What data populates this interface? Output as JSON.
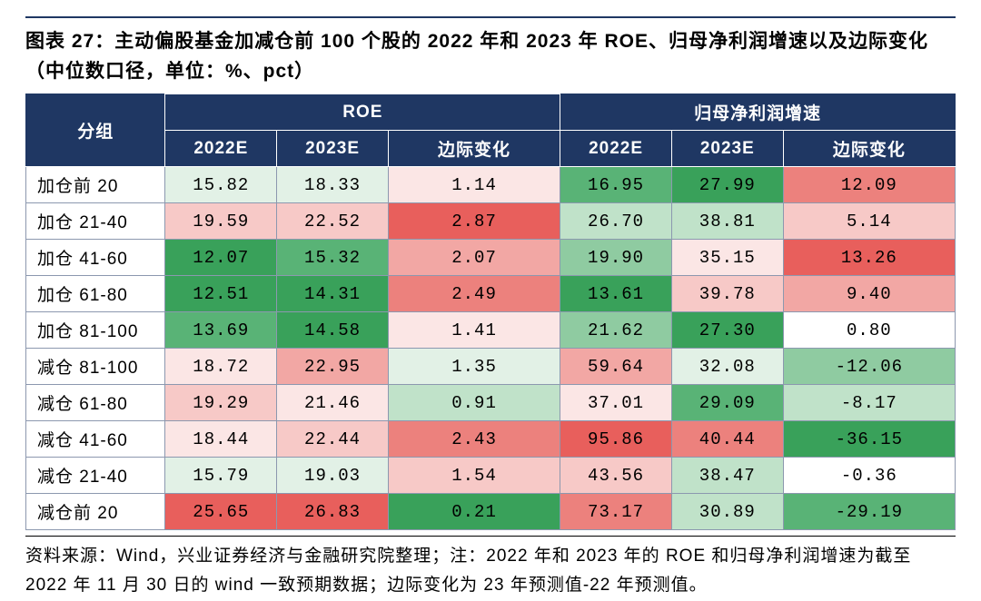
{
  "title": "图表 27：主动偏股基金加减仓前 100 个股的 2022 年和 2023 年 ROE、归母净利润增速以及边际变化（中位数口径，单位：%、pct）",
  "footnote": "资料来源：Wind，兴业证券经济与金融研究院整理；注：2022 年和 2023 年的 ROE 和归母净利润增速为截至 2022 年 11 月 30 日的 wind 一致预期数据；边际变化为 23 年预测值-22 年预测值。",
  "header": {
    "group": "分组",
    "roe": "ROE",
    "profit": "归母净利润增速",
    "y2022": "2022E",
    "y2023": "2023E",
    "delta": "边际变化"
  },
  "col_widths_pct": [
    15,
    12,
    12,
    18.5,
    12,
    12,
    18.5
  ],
  "palette": {
    "green5": "#39a15a",
    "green4": "#59b376",
    "green3": "#8fcba1",
    "green2": "#c0e2c9",
    "green1": "#e2f1e6",
    "red5": "#e85f5c",
    "red4": "#ec817d",
    "red3": "#f2a7a4",
    "red2": "#f7c9c7",
    "red1": "#fbe6e5",
    "white": "#ffffff"
  },
  "rows": [
    {
      "label": "加仓前 20",
      "c": [
        {
          "v": "15.82",
          "k": "green1"
        },
        {
          "v": "18.33",
          "k": "green1"
        },
        {
          "v": "1.14",
          "k": "red1"
        },
        {
          "v": "16.95",
          "k": "green4"
        },
        {
          "v": "27.99",
          "k": "green5"
        },
        {
          "v": "12.09",
          "k": "red4"
        }
      ]
    },
    {
      "label": "加仓 21-40",
      "c": [
        {
          "v": "19.59",
          "k": "red2"
        },
        {
          "v": "22.52",
          "k": "red2"
        },
        {
          "v": "2.87",
          "k": "red5"
        },
        {
          "v": "26.70",
          "k": "green2"
        },
        {
          "v": "38.81",
          "k": "green2"
        },
        {
          "v": "5.14",
          "k": "red2"
        }
      ]
    },
    {
      "label": "加仓 41-60",
      "c": [
        {
          "v": "12.07",
          "k": "green5"
        },
        {
          "v": "15.32",
          "k": "green4"
        },
        {
          "v": "2.07",
          "k": "red3"
        },
        {
          "v": "19.90",
          "k": "green3"
        },
        {
          "v": "35.15",
          "k": "red1"
        },
        {
          "v": "13.26",
          "k": "red5"
        }
      ]
    },
    {
      "label": "加仓 61-80",
      "c": [
        {
          "v": "12.51",
          "k": "green5"
        },
        {
          "v": "14.31",
          "k": "green5"
        },
        {
          "v": "2.49",
          "k": "red4"
        },
        {
          "v": "13.61",
          "k": "green5"
        },
        {
          "v": "39.78",
          "k": "red2"
        },
        {
          "v": "9.40",
          "k": "red3"
        }
      ]
    },
    {
      "label": "加仓 81-100",
      "c": [
        {
          "v": "13.69",
          "k": "green4"
        },
        {
          "v": "14.58",
          "k": "green5"
        },
        {
          "v": "1.41",
          "k": "red1"
        },
        {
          "v": "21.62",
          "k": "green3"
        },
        {
          "v": "27.30",
          "k": "green5"
        },
        {
          "v": "0.80",
          "k": "white"
        }
      ]
    },
    {
      "label": "减仓 81-100",
      "c": [
        {
          "v": "18.72",
          "k": "red1"
        },
        {
          "v": "22.95",
          "k": "red3"
        },
        {
          "v": "1.35",
          "k": "green1"
        },
        {
          "v": "59.64",
          "k": "red3"
        },
        {
          "v": "32.08",
          "k": "green1"
        },
        {
          "v": "-12.06",
          "k": "green3"
        }
      ]
    },
    {
      "label": "减仓 61-80",
      "c": [
        {
          "v": "19.29",
          "k": "red2"
        },
        {
          "v": "21.46",
          "k": "red1"
        },
        {
          "v": "0.91",
          "k": "green2"
        },
        {
          "v": "37.01",
          "k": "red1"
        },
        {
          "v": "29.09",
          "k": "green4"
        },
        {
          "v": "-8.17",
          "k": "green2"
        }
      ]
    },
    {
      "label": "减仓 41-60",
      "c": [
        {
          "v": "18.44",
          "k": "red1"
        },
        {
          "v": "22.44",
          "k": "red2"
        },
        {
          "v": "2.43",
          "k": "red4"
        },
        {
          "v": "95.86",
          "k": "red5"
        },
        {
          "v": "40.44",
          "k": "red4"
        },
        {
          "v": "-36.15",
          "k": "green5"
        }
      ]
    },
    {
      "label": "减仓 21-40",
      "c": [
        {
          "v": "15.79",
          "k": "green1"
        },
        {
          "v": "19.03",
          "k": "green1"
        },
        {
          "v": "1.54",
          "k": "red2"
        },
        {
          "v": "43.56",
          "k": "red2"
        },
        {
          "v": "38.47",
          "k": "green2"
        },
        {
          "v": "-0.36",
          "k": "white"
        }
      ]
    },
    {
      "label": "减仓前 20",
      "c": [
        {
          "v": "25.65",
          "k": "red5"
        },
        {
          "v": "26.83",
          "k": "red5"
        },
        {
          "v": "0.21",
          "k": "green5"
        },
        {
          "v": "73.17",
          "k": "red4"
        },
        {
          "v": "30.89",
          "k": "green2"
        },
        {
          "v": "-29.19",
          "k": "green4"
        }
      ]
    }
  ]
}
